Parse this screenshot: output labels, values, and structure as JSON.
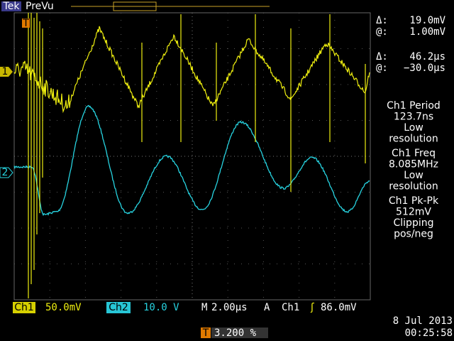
{
  "header": {
    "brand": "Tek",
    "mode": "PreVu"
  },
  "channel_markers": [
    "1",
    "2"
  ],
  "trigger_marker": "T",
  "cursor_readouts": [
    {
      "label": "Δ:",
      "value": "19.0mV"
    },
    {
      "label": "@:",
      "value": "1.00mV"
    },
    {
      "label": "Δ:",
      "value": "46.2µs"
    },
    {
      "label": "@:",
      "value": "−30.0µs"
    }
  ],
  "measurements": [
    {
      "lines": [
        "Ch1 Period",
        "123.7ns",
        "Low",
        "resolution"
      ]
    },
    {
      "lines": [
        "Ch1 Freq",
        "8.085MHz",
        "Low",
        "resolution"
      ]
    },
    {
      "lines": [
        "Ch1 Pk-Pk",
        "512mV",
        "Clipping",
        "pos/neg"
      ]
    }
  ],
  "bottom_bar": {
    "ch1_label": "Ch1",
    "ch1_scale": "50.0mV",
    "ch2_label": "Ch2",
    "ch2_scale": "10.0 V",
    "timebase_label": "M",
    "timebase": "2.00µs",
    "trigger_label": "A",
    "trigger_source": "Ch1",
    "trigger_slope": "ʃ",
    "trigger_level": "86.0mV"
  },
  "trigger_position": {
    "marker": "T",
    "value": "3.200 %"
  },
  "date": "8 Jul  2013",
  "time": "00:25:58"
}
